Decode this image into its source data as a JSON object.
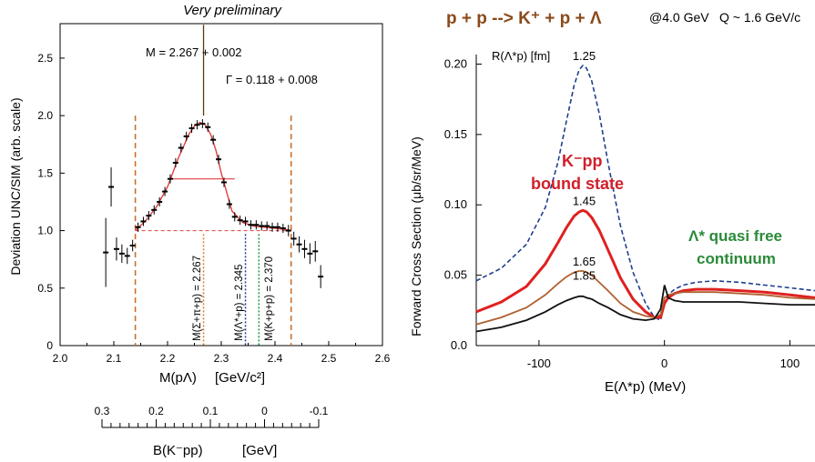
{
  "chart_data": [
    {
      "type": "scatter",
      "title": "Very preliminary",
      "xlabel_main": "M(pΛ)",
      "xlabel_unit": "[GeV/c²]",
      "ylabel": "Deviation  UNC/SIM  (arb. scale)",
      "xlim": [
        2.0,
        2.6
      ],
      "ylim": [
        0,
        2.8
      ],
      "xticks": [
        "2.0",
        "2.1",
        "2.2",
        "2.3",
        "2.4",
        "2.5",
        "2.6"
      ],
      "yticks": [
        "0",
        "0.5",
        "1.0",
        "1.5",
        "2.0",
        "2.5"
      ],
      "annotations": {
        "mass": "M = 2.267 + 0.002",
        "width": "Γ = 0.118 + 0.008",
        "line1": "M(Σ+π+p) = 2.267",
        "line2": "M(Λ*+p) = 2.345",
        "line3": "M(K+p+p) = 2.370"
      },
      "vlines": [
        {
          "x": 2.267,
          "color": "#e07a20"
        },
        {
          "x": 2.345,
          "color": "#1f3aa0"
        },
        {
          "x": 2.37,
          "color": "#1a9a3a"
        }
      ],
      "cut_lines": [
        2.14,
        2.43
      ],
      "peak_spike": {
        "x": 2.267,
        "y": 2.0
      },
      "points": [
        {
          "x": 2.085,
          "y": 0.81,
          "err": 0.3
        },
        {
          "x": 2.095,
          "y": 1.38,
          "err": 0.17
        },
        {
          "x": 2.105,
          "y": 0.84,
          "err": 0.1
        },
        {
          "x": 2.115,
          "y": 0.8,
          "err": 0.08
        },
        {
          "x": 2.125,
          "y": 0.78,
          "err": 0.07
        },
        {
          "x": 2.135,
          "y": 0.87,
          "err": 0.05
        },
        {
          "x": 2.145,
          "y": 1.03,
          "err": 0.04
        },
        {
          "x": 2.155,
          "y": 1.08,
          "err": 0.04
        },
        {
          "x": 2.165,
          "y": 1.13,
          "err": 0.04
        },
        {
          "x": 2.175,
          "y": 1.18,
          "err": 0.04
        },
        {
          "x": 2.185,
          "y": 1.25,
          "err": 0.04
        },
        {
          "x": 2.195,
          "y": 1.34,
          "err": 0.04
        },
        {
          "x": 2.205,
          "y": 1.45,
          "err": 0.04
        },
        {
          "x": 2.215,
          "y": 1.59,
          "err": 0.04
        },
        {
          "x": 2.225,
          "y": 1.72,
          "err": 0.04
        },
        {
          "x": 2.235,
          "y": 1.82,
          "err": 0.04
        },
        {
          "x": 2.245,
          "y": 1.89,
          "err": 0.04
        },
        {
          "x": 2.255,
          "y": 1.92,
          "err": 0.04
        },
        {
          "x": 2.265,
          "y": 1.93,
          "err": 0.04
        },
        {
          "x": 2.275,
          "y": 1.9,
          "err": 0.04
        },
        {
          "x": 2.285,
          "y": 1.79,
          "err": 0.04
        },
        {
          "x": 2.295,
          "y": 1.62,
          "err": 0.04
        },
        {
          "x": 2.305,
          "y": 1.42,
          "err": 0.04
        },
        {
          "x": 2.315,
          "y": 1.23,
          "err": 0.04
        },
        {
          "x": 2.325,
          "y": 1.12,
          "err": 0.04
        },
        {
          "x": 2.335,
          "y": 1.09,
          "err": 0.04
        },
        {
          "x": 2.345,
          "y": 1.08,
          "err": 0.04
        },
        {
          "x": 2.355,
          "y": 1.05,
          "err": 0.04
        },
        {
          "x": 2.365,
          "y": 1.05,
          "err": 0.04
        },
        {
          "x": 2.375,
          "y": 1.04,
          "err": 0.04
        },
        {
          "x": 2.385,
          "y": 1.04,
          "err": 0.04
        },
        {
          "x": 2.395,
          "y": 1.03,
          "err": 0.04
        },
        {
          "x": 2.405,
          "y": 1.03,
          "err": 0.04
        },
        {
          "x": 2.415,
          "y": 1.02,
          "err": 0.04
        },
        {
          "x": 2.425,
          "y": 1.0,
          "err": 0.05
        },
        {
          "x": 2.435,
          "y": 0.93,
          "err": 0.06
        },
        {
          "x": 2.445,
          "y": 0.88,
          "err": 0.07
        },
        {
          "x": 2.455,
          "y": 0.84,
          "err": 0.08
        },
        {
          "x": 2.465,
          "y": 0.8,
          "err": 0.09
        },
        {
          "x": 2.475,
          "y": 0.82,
          "err": 0.09
        },
        {
          "x": 2.485,
          "y": 0.6,
          "err": 0.1
        }
      ],
      "fit_curve": {
        "x": [
          2.14,
          2.16,
          2.18,
          2.2,
          2.22,
          2.24,
          2.25,
          2.26,
          2.27,
          2.28,
          2.29,
          2.3,
          2.32,
          2.34,
          2.36,
          2.38,
          2.4,
          2.42,
          2.43
        ],
        "y": [
          1.0,
          1.09,
          1.21,
          1.38,
          1.63,
          1.84,
          1.91,
          1.94,
          1.92,
          1.84,
          1.7,
          1.5,
          1.17,
          1.07,
          1.04,
          1.03,
          1.02,
          1.01,
          1.0
        ]
      },
      "fwhm_line": {
        "x1": 2.208,
        "x2": 2.325,
        "y": 1.45
      },
      "baseline": {
        "x1": 2.14,
        "x2": 2.43,
        "y": 1.0
      },
      "secondary_axis": {
        "label_main": "B(K⁻pp)",
        "label_unit": "[GeV]",
        "ticks": [
          "0.3",
          "0.2",
          "0.1",
          "0",
          "-0.1"
        ]
      }
    },
    {
      "type": "line",
      "title_reaction": "p + p --> K⁺ + p + Λ",
      "title_energy": "@4.0 GeV",
      "title_q": "Q ~ 1.6 GeV/c",
      "xlabel": "E(Λ*p)   (MeV)",
      "ylabel": "Forward Cross Section   (μb/sr/MeV)",
      "xlim": [
        -150,
        120
      ],
      "ylim": [
        0,
        0.21
      ],
      "xticks": [
        "-100",
        "0",
        "100"
      ],
      "yticks": [
        "0.0",
        "0.05",
        "0.10",
        "0.15",
        "0.20"
      ],
      "radius_header": "R(Λ*p)  [fm]",
      "label_bound": "K⁻pp",
      "label_bound2": "bound state",
      "label_free": "Λ* quasi free",
      "label_free2": "continuum",
      "series": [
        {
          "name": "1.25",
          "color": "#1f3f8f",
          "dashed": true,
          "x": [
            -150,
            -130,
            -110,
            -95,
            -85,
            -78,
            -72,
            -68,
            -65,
            -62,
            -58,
            -52,
            -45,
            -35,
            -25,
            -15,
            -8,
            -3,
            0,
            3,
            8,
            15,
            25,
            40,
            60,
            80,
            100,
            120
          ],
          "y": [
            0.046,
            0.055,
            0.072,
            0.098,
            0.13,
            0.16,
            0.185,
            0.196,
            0.199,
            0.197,
            0.188,
            0.165,
            0.13,
            0.085,
            0.052,
            0.03,
            0.02,
            0.018,
            0.03,
            0.036,
            0.04,
            0.043,
            0.045,
            0.046,
            0.045,
            0.043,
            0.041,
            0.039
          ]
        },
        {
          "name": "1.45",
          "color": "#e02020",
          "dashed": false,
          "x": [
            -150,
            -130,
            -110,
            -95,
            -85,
            -78,
            -72,
            -68,
            -65,
            -62,
            -58,
            -52,
            -45,
            -35,
            -25,
            -15,
            -8,
            -3,
            0,
            3,
            8,
            15,
            25,
            40,
            60,
            80,
            100,
            120
          ],
          "y": [
            0.024,
            0.031,
            0.042,
            0.058,
            0.073,
            0.084,
            0.092,
            0.095,
            0.096,
            0.095,
            0.091,
            0.082,
            0.068,
            0.048,
            0.033,
            0.024,
            0.02,
            0.02,
            0.03,
            0.034,
            0.037,
            0.039,
            0.04,
            0.04,
            0.039,
            0.038,
            0.036,
            0.034
          ]
        },
        {
          "name": "1.65",
          "color": "#b06030",
          "dashed": false,
          "x": [
            -150,
            -130,
            -110,
            -95,
            -85,
            -78,
            -72,
            -68,
            -65,
            -62,
            -58,
            -52,
            -45,
            -35,
            -25,
            -15,
            -8,
            -3,
            0,
            3,
            8,
            15,
            25,
            40,
            60,
            80,
            100,
            120
          ],
          "y": [
            0.015,
            0.02,
            0.027,
            0.036,
            0.044,
            0.049,
            0.052,
            0.053,
            0.053,
            0.052,
            0.05,
            0.045,
            0.039,
            0.03,
            0.024,
            0.021,
            0.02,
            0.022,
            0.034,
            0.036,
            0.037,
            0.038,
            0.038,
            0.038,
            0.037,
            0.036,
            0.034,
            0.033
          ]
        },
        {
          "name": "1.85",
          "color": "#111111",
          "dashed": false,
          "x": [
            -150,
            -130,
            -110,
            -95,
            -85,
            -78,
            -72,
            -68,
            -65,
            -62,
            -58,
            -52,
            -45,
            -35,
            -25,
            -15,
            -8,
            -3,
            0,
            3,
            8,
            15,
            25,
            40,
            60,
            80,
            100,
            120
          ],
          "y": [
            0.01,
            0.013,
            0.018,
            0.024,
            0.029,
            0.032,
            0.034,
            0.035,
            0.035,
            0.034,
            0.033,
            0.03,
            0.027,
            0.022,
            0.019,
            0.018,
            0.019,
            0.026,
            0.043,
            0.034,
            0.032,
            0.031,
            0.031,
            0.031,
            0.031,
            0.03,
            0.029,
            0.029
          ]
        }
      ]
    }
  ]
}
